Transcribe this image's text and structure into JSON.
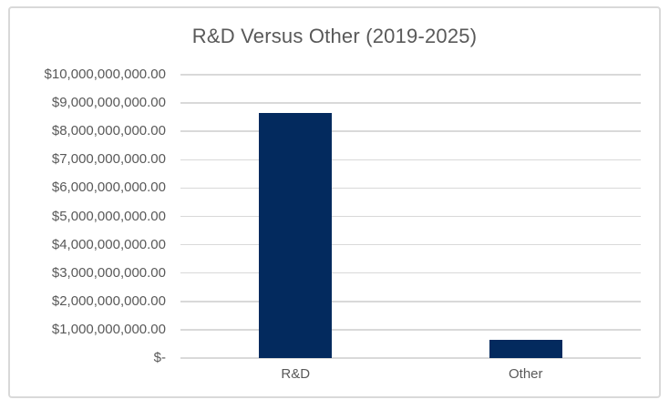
{
  "chart_data": {
    "type": "bar",
    "title": "R&D Versus Other (2019-2025)",
    "categories": [
      "R&D",
      "Other"
    ],
    "values": [
      8650000000,
      640000000
    ],
    "xlabel": "",
    "ylabel": "",
    "ylim": [
      0,
      10000000000
    ],
    "ytick_interval": 1000000000,
    "ytick_labels": [
      "$-",
      "$1,000,000,000.00",
      "$2,000,000,000.00",
      "$3,000,000,000.00",
      "$4,000,000,000.00",
      "$5,000,000,000.00",
      "$6,000,000,000.00",
      "$7,000,000,000.00",
      "$8,000,000,000.00",
      "$9,000,000,000.00",
      "$10,000,000,000.00"
    ],
    "grid": true,
    "legend": false,
    "bar_color": "#032a5e",
    "gridline_color": "#d9d9d9",
    "text_color": "#595959",
    "border_color": "#d9d9d9",
    "background_color": "#ffffff"
  }
}
